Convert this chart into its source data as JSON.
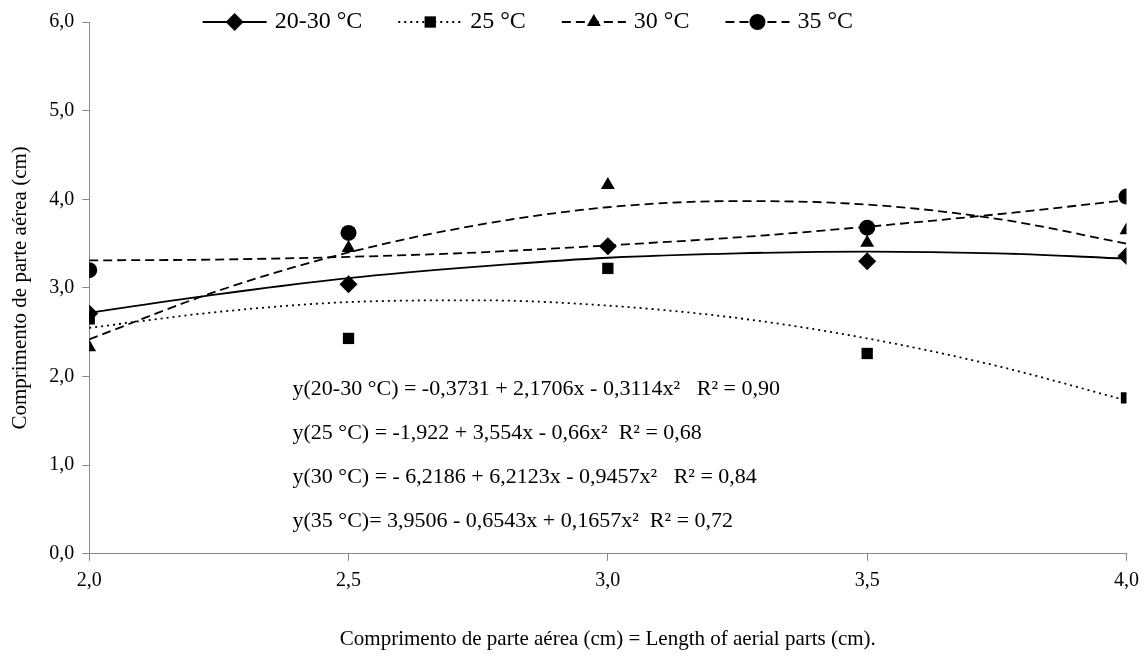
{
  "chart_data": {
    "type": "scatter",
    "xlabel": "Comprimento de parte aérea (cm) = Length of aerial parts (cm).",
    "ylabel": "Comprimento de parte aérea (cm)",
    "x": [
      2.0,
      2.5,
      3.0,
      3.5,
      4.0
    ],
    "xlim": [
      2.0,
      4.0
    ],
    "xticks": [
      {
        "value": 2.0,
        "label": "2,0"
      },
      {
        "value": 2.5,
        "label": "2,5"
      },
      {
        "value": 3.0,
        "label": "3,0"
      },
      {
        "value": 3.5,
        "label": "3,5"
      },
      {
        "value": 4.0,
        "label": "4,0"
      }
    ],
    "ylim": [
      0,
      6
    ],
    "yticks": [
      {
        "value": 0,
        "label": "0,0"
      },
      {
        "value": 1,
        "label": "1,0"
      },
      {
        "value": 2,
        "label": "2,0"
      },
      {
        "value": 3,
        "label": "3,0"
      },
      {
        "value": 4,
        "label": "4,0"
      },
      {
        "value": 5,
        "label": "5,0"
      },
      {
        "value": 6,
        "label": "6,0"
      }
    ],
    "grid": false,
    "legend": "top",
    "series": [
      {
        "name": "20-30 °C",
        "color": "#000000",
        "marker": "diamond",
        "line_style": "solid",
        "values": [
          2.71,
          3.04,
          3.47,
          3.3,
          3.36
        ]
      },
      {
        "name": "25 °C",
        "color": "#000000",
        "marker": "square",
        "line_style": "dotted",
        "values": [
          2.65,
          2.43,
          3.22,
          2.26,
          1.76
        ]
      },
      {
        "name": "30 °C",
        "color": "#000000",
        "marker": "triangle",
        "line_style": "dashed",
        "values": [
          2.33,
          3.45,
          4.16,
          3.51,
          3.65
        ]
      },
      {
        "name": "35 °C",
        "color": "#000000",
        "marker": "circle",
        "line_style": "dashed",
        "values": [
          3.2,
          3.62,
          null,
          3.68,
          4.03
        ]
      },
      {
        "type": "line",
        "color": "#000000",
        "marker": "none",
        "line_style": "solid",
        "x": [
          2.0,
          2.25,
          2.5,
          2.75,
          3.0,
          3.25,
          3.5,
          3.75,
          4.0
        ],
        "values": [
          2.72,
          2.93,
          3.11,
          3.24,
          3.34,
          3.39,
          3.41,
          3.39,
          3.33
        ]
      },
      {
        "type": "line",
        "color": "#000000",
        "marker": "none",
        "line_style": "dotted",
        "x": [
          2.0,
          2.25,
          2.5,
          2.75,
          3.0,
          3.25,
          3.5,
          3.75,
          4.0
        ],
        "values": [
          2.55,
          2.73,
          2.84,
          2.86,
          2.8,
          2.66,
          2.43,
          2.12,
          1.73
        ]
      },
      {
        "type": "line",
        "color": "#000000",
        "marker": "none",
        "line_style": "dashed",
        "x": [
          2.0,
          2.25,
          2.5,
          2.75,
          3.0,
          3.25,
          3.5,
          3.75,
          4.0
        ],
        "values": [
          2.42,
          2.97,
          3.4,
          3.71,
          3.91,
          3.98,
          3.94,
          3.78,
          3.5
        ]
      },
      {
        "type": "line",
        "color": "#000000",
        "marker": "none",
        "line_style": "dashed",
        "x": [
          2.0,
          2.25,
          2.5,
          2.75,
          3.0,
          3.25,
          3.5,
          3.75,
          4.0
        ],
        "values": [
          3.31,
          3.32,
          3.35,
          3.4,
          3.48,
          3.57,
          3.69,
          3.83,
          3.99
        ]
      }
    ],
    "annotations": [
      "y(20-30 °C) = -0,3731 + 2,1706x - 0,3114x²   R² = 0,90",
      "y(25 °C) = -1,922 + 3,554x - 0,66x²  R² = 0,68",
      "y(30 °C) = - 6,2186 + 6,2123x - 0,9457x²   R² = 0,84",
      "y(35 °C)= 3,9506 - 0,6543x + 0,1657x²  R² = 0,72"
    ]
  }
}
